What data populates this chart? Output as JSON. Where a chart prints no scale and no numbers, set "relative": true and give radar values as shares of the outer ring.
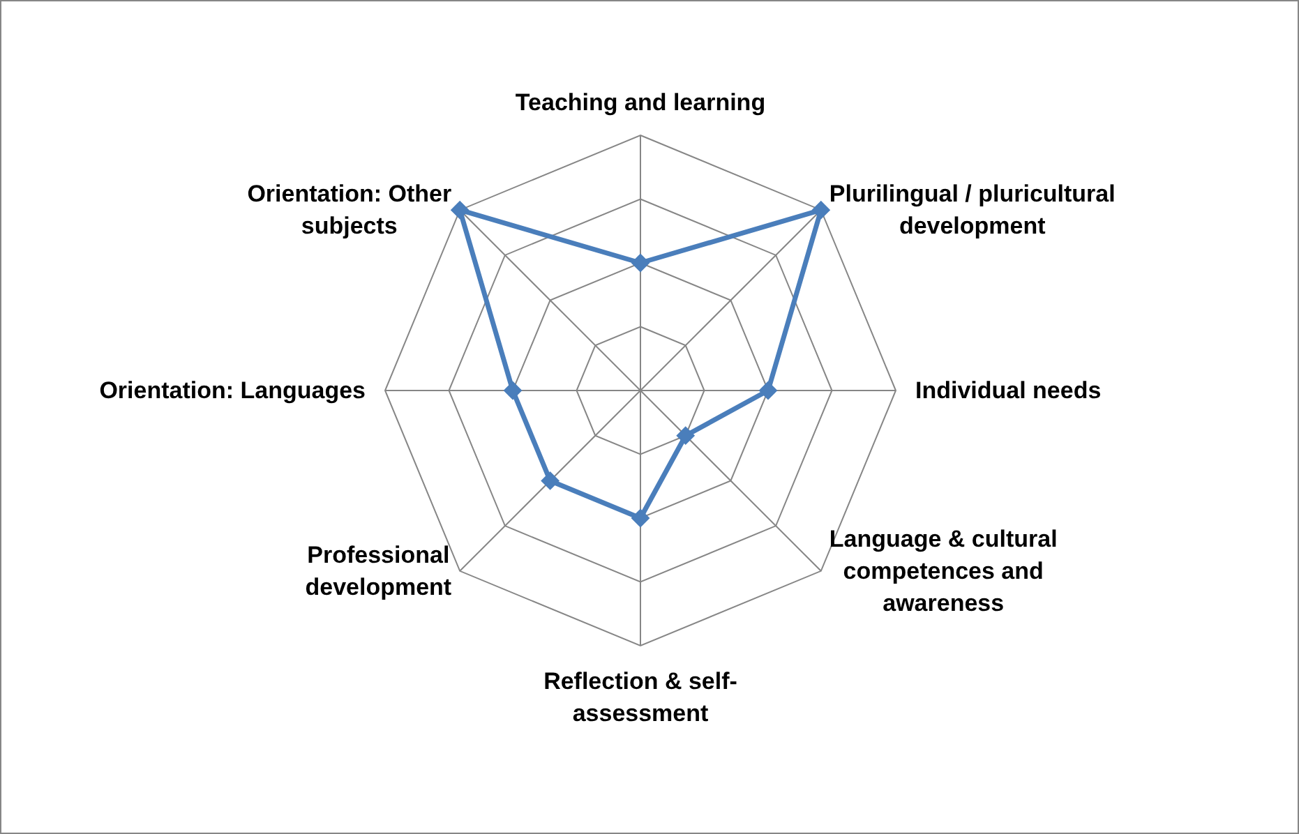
{
  "chart_data": {
    "type": "radar",
    "relative": true,
    "categories": [
      "Teaching and learning",
      "Plurilingual / pluricultural development",
      "Individual needs",
      "Language & cultural competences and awareness",
      "Reflection & self-assessment",
      "Professional development",
      "Orientation: Languages",
      "Orientation: Other subjects"
    ],
    "series": [
      {
        "color": "#4a7ebb",
        "values": [
          0.5,
          1,
          0.5,
          0.25,
          0.5,
          0.5,
          0.5,
          1
        ]
      }
    ],
    "grid": true,
    "marker": "diamond",
    "line_style": "solid"
  }
}
